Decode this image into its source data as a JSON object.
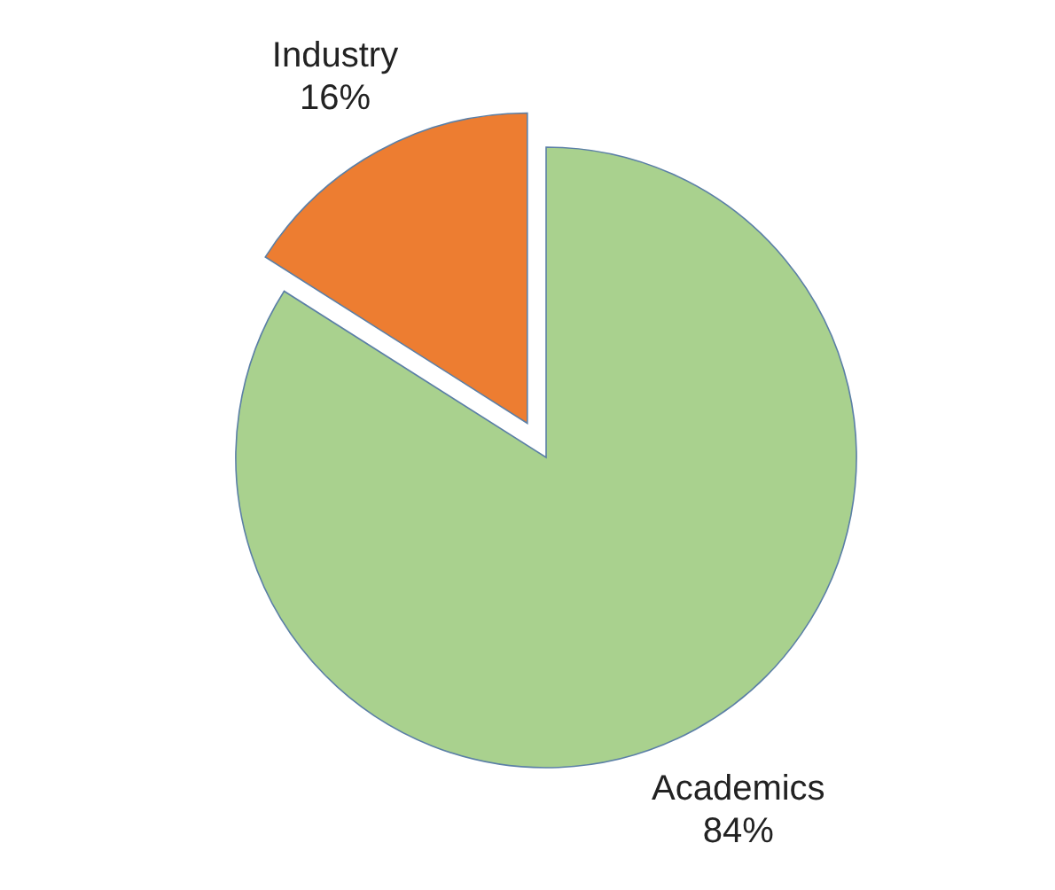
{
  "chart_data": {
    "type": "pie",
    "categories": [
      "Academics",
      "Industry"
    ],
    "values": [
      84,
      16
    ],
    "value_labels": [
      "84%",
      "16%"
    ],
    "colors": [
      "#a9d18e",
      "#ed7d31"
    ],
    "legend": false
  }
}
